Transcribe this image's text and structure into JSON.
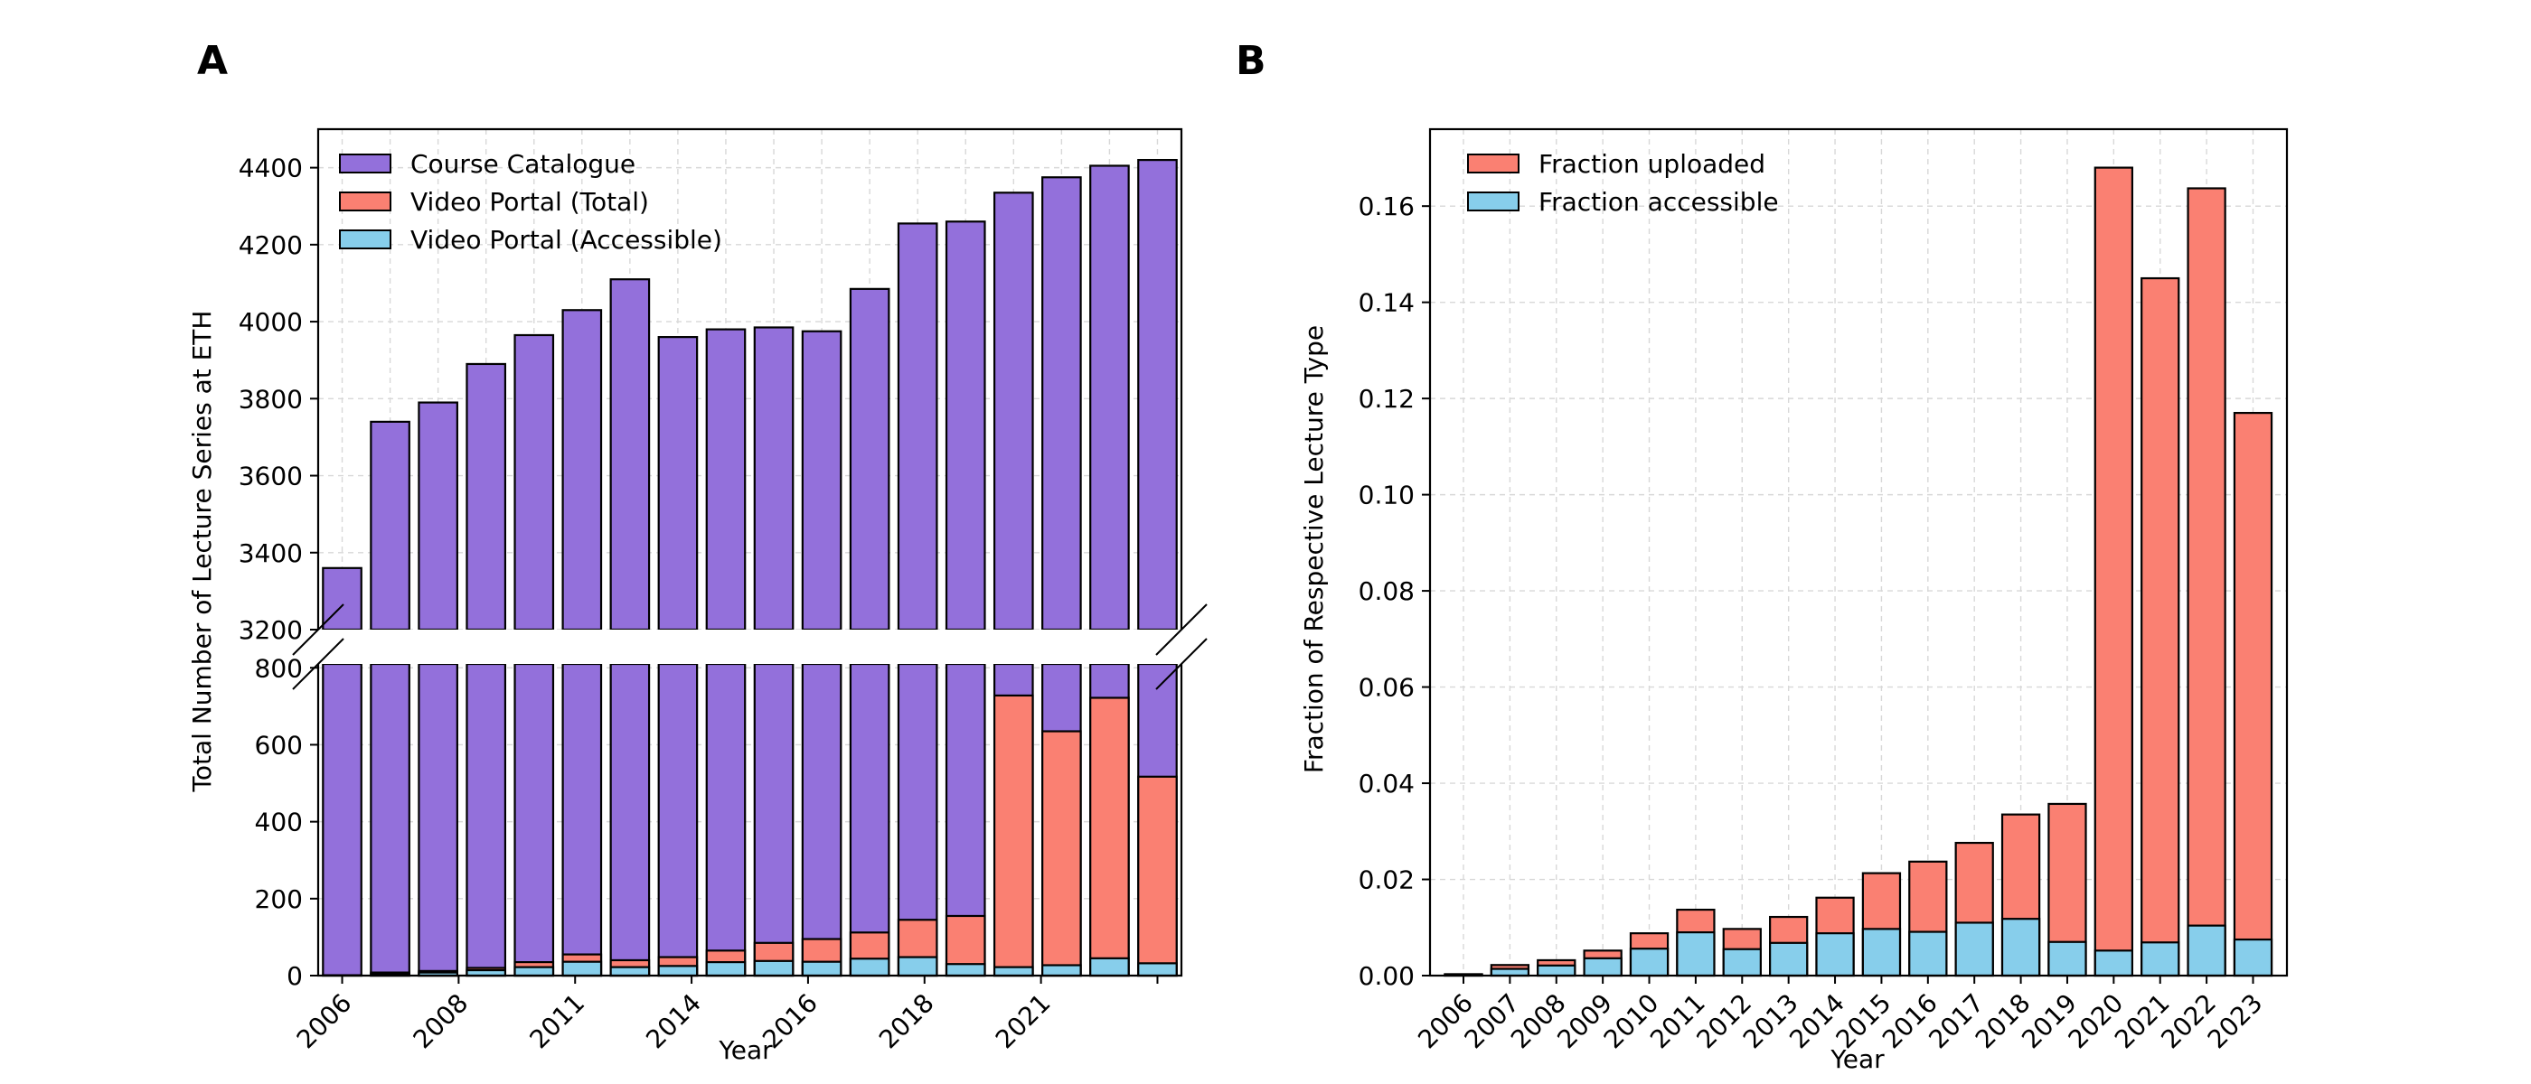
{
  "panels": [
    {
      "label": "A"
    },
    {
      "label": "B"
    }
  ],
  "colors": {
    "course_catalogue": "#9370DB",
    "video_total": "#FA8072",
    "video_accessible": "#87CEEB"
  },
  "chart_data": [
    {
      "type": "bar",
      "panel": "A",
      "stacked": true,
      "broken_y_axis": true,
      "xlabel": "Year",
      "ylabel": "Total Number of Lecture Series at ETH",
      "categories": [
        "2006",
        "2007",
        "2008",
        "2009",
        "2010",
        "2011",
        "2012",
        "2013",
        "2014",
        "2015",
        "2016",
        "2017",
        "2018",
        "2019",
        "2020",
        "2021",
        "2022",
        "2023"
      ],
      "x_tick_labels": [
        "2006",
        "2008",
        "2011",
        "2014",
        "2016",
        "2018",
        "2021"
      ],
      "series": [
        {
          "name": "Course Catalogue",
          "color": "#9370DB",
          "values": [
            3360,
            3740,
            3790,
            3890,
            3965,
            4030,
            4110,
            3960,
            3980,
            3985,
            3975,
            4085,
            4255,
            4260,
            4335,
            4375,
            4405,
            4420
          ]
        },
        {
          "name": "Video Portal (Total)",
          "color": "#FA8072",
          "values": [
            1,
            8,
            12,
            20,
            35,
            55,
            40,
            48,
            65,
            85,
            95,
            112,
            145,
            155,
            728,
            635,
            722,
            517
          ]
        },
        {
          "name": "Video Portal (Accessible)",
          "color": "#87CEEB",
          "values": [
            0,
            5,
            8,
            14,
            22,
            36,
            22,
            25,
            35,
            38,
            36,
            44,
            48,
            30,
            22,
            27,
            45,
            32
          ]
        }
      ],
      "y_segments": [
        {
          "ylim": [
            0,
            810
          ],
          "yticks": [
            0,
            200,
            400,
            600,
            800
          ]
        },
        {
          "ylim": [
            3200,
            4500
          ],
          "yticks": [
            3200,
            3400,
            3600,
            3800,
            4000,
            4200,
            4400
          ]
        }
      ],
      "grid": true,
      "legend_position": "upper-left"
    },
    {
      "type": "bar",
      "panel": "B",
      "stacked": false,
      "xlabel": "Year",
      "ylabel": "Fraction of Respective Lecture Type",
      "categories": [
        "2006",
        "2007",
        "2008",
        "2009",
        "2010",
        "2011",
        "2012",
        "2013",
        "2014",
        "2015",
        "2016",
        "2017",
        "2018",
        "2019",
        "2020",
        "2021",
        "2022",
        "2023"
      ],
      "ylim": [
        0,
        0.176
      ],
      "yticks": [
        "0.00",
        "0.02",
        "0.04",
        "0.06",
        "0.08",
        "0.10",
        "0.12",
        "0.14",
        "0.16"
      ],
      "series": [
        {
          "name": "Fraction uploaded",
          "color": "#FA8072",
          "values": [
            0.0003,
            0.0022,
            0.0032,
            0.0052,
            0.0088,
            0.0137,
            0.0097,
            0.0122,
            0.0162,
            0.0213,
            0.0237,
            0.0276,
            0.0335,
            0.0357,
            0.168,
            0.145,
            0.1637,
            0.117
          ]
        },
        {
          "name": "Fraction accessible",
          "color": "#87CEEB",
          "values": [
            0.0002,
            0.0014,
            0.0021,
            0.0036,
            0.0056,
            0.009,
            0.0055,
            0.0068,
            0.0088,
            0.0097,
            0.0091,
            0.011,
            0.0118,
            0.007,
            0.0052,
            0.0069,
            0.0104,
            0.0075
          ]
        }
      ],
      "grid": true,
      "legend_position": "upper-left"
    }
  ]
}
